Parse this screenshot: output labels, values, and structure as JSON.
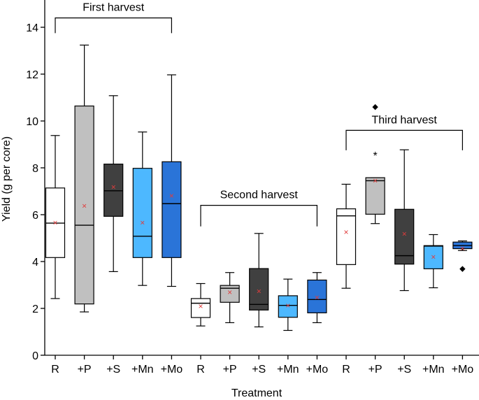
{
  "chart_data": {
    "type": "box",
    "xlabel": "Treatment",
    "ylabel": "Yield (g per core)",
    "ylim": [
      0,
      15
    ],
    "yticks": [
      0,
      2,
      4,
      6,
      8,
      10,
      12,
      14
    ],
    "mean_marker": "×",
    "outlier_markers": {
      "diamond": "◆",
      "star": "*"
    },
    "colors": {
      "R": "#ffffff",
      "+P": "#c0c0c0",
      "+S": "#404040",
      "+Mn": "#4db8ff",
      "+Mo": "#2a74d8",
      "mean": "#e03c3c"
    },
    "groups": [
      {
        "label": "First harvest",
        "bracket_y": 14.4,
        "bracket_drop": 13.75,
        "boxes": [
          {
            "category": "R",
            "min": 2.42,
            "q1": 4.17,
            "median": 5.64,
            "q3": 7.14,
            "max": 9.38,
            "mean": 5.66,
            "outliers": []
          },
          {
            "category": "+P",
            "min": 1.85,
            "q1": 2.19,
            "median": 5.55,
            "q3": 10.64,
            "max": 13.24,
            "mean": 6.37,
            "outliers": []
          },
          {
            "category": "+S",
            "min": 3.57,
            "q1": 5.93,
            "median": 7.02,
            "q3": 8.16,
            "max": 11.08,
            "mean": 7.18,
            "outliers": []
          },
          {
            "category": "+Mn",
            "min": 2.98,
            "q1": 4.17,
            "median": 5.08,
            "q3": 7.98,
            "max": 9.53,
            "mean": 5.66,
            "outliers": []
          },
          {
            "category": "+Mo",
            "min": 2.94,
            "q1": 4.17,
            "median": 6.47,
            "q3": 8.26,
            "max": 11.97,
            "mean": 6.81,
            "outliers": []
          }
        ]
      },
      {
        "label": "Second harvest",
        "bracket_y": 6.4,
        "bracket_drop": 5.5,
        "boxes": [
          {
            "category": "R",
            "min": 1.25,
            "q1": 1.61,
            "median": 2.22,
            "q3": 2.42,
            "max": 3.06,
            "mean": 2.09,
            "outliers": []
          },
          {
            "category": "+P",
            "min": 1.39,
            "q1": 2.26,
            "median": 2.86,
            "q3": 2.98,
            "max": 3.53,
            "mean": 2.69,
            "outliers": []
          },
          {
            "category": "+S",
            "min": 1.21,
            "q1": 1.93,
            "median": 2.17,
            "q3": 3.7,
            "max": 5.2,
            "mean": 2.73,
            "outliers": []
          },
          {
            "category": "+Mn",
            "min": 1.06,
            "q1": 1.62,
            "median": 2.13,
            "q3": 2.54,
            "max": 3.25,
            "mean": 2.12,
            "outliers": []
          },
          {
            "category": "+Mo",
            "min": 1.39,
            "q1": 1.81,
            "median": 2.38,
            "q3": 3.21,
            "max": 3.53,
            "mean": 2.46,
            "outliers": []
          }
        ]
      },
      {
        "label": "Third harvest",
        "bracket_y": 9.6,
        "bracket_drop": 8.75,
        "boxes": [
          {
            "category": "R",
            "min": 2.86,
            "q1": 3.87,
            "median": 5.95,
            "q3": 6.25,
            "max": 7.3,
            "mean": 5.25,
            "outliers": []
          },
          {
            "category": "+P",
            "min": 5.62,
            "q1": 6.02,
            "median": 7.45,
            "q3": 7.58,
            "max": 7.58,
            "mean": 7.45,
            "outliers": [
              {
                "value": 10.62,
                "marker": "diamond"
              },
              {
                "value": 8.65,
                "marker": "star"
              }
            ]
          },
          {
            "category": "+S",
            "min": 2.76,
            "q1": 3.89,
            "median": 4.25,
            "q3": 6.23,
            "max": 8.77,
            "mean": 5.18,
            "outliers": []
          },
          {
            "category": "+Mn",
            "min": 2.88,
            "q1": 3.69,
            "median": 4.66,
            "q3": 4.68,
            "max": 5.15,
            "mean": 4.2,
            "outliers": []
          },
          {
            "category": "+Mo",
            "min": 4.47,
            "q1": 4.55,
            "median": 4.68,
            "q3": 4.83,
            "max": 4.88,
            "mean": 4.55,
            "outliers": [
              {
                "value": 3.72,
                "marker": "diamond"
              }
            ]
          }
        ]
      }
    ]
  }
}
